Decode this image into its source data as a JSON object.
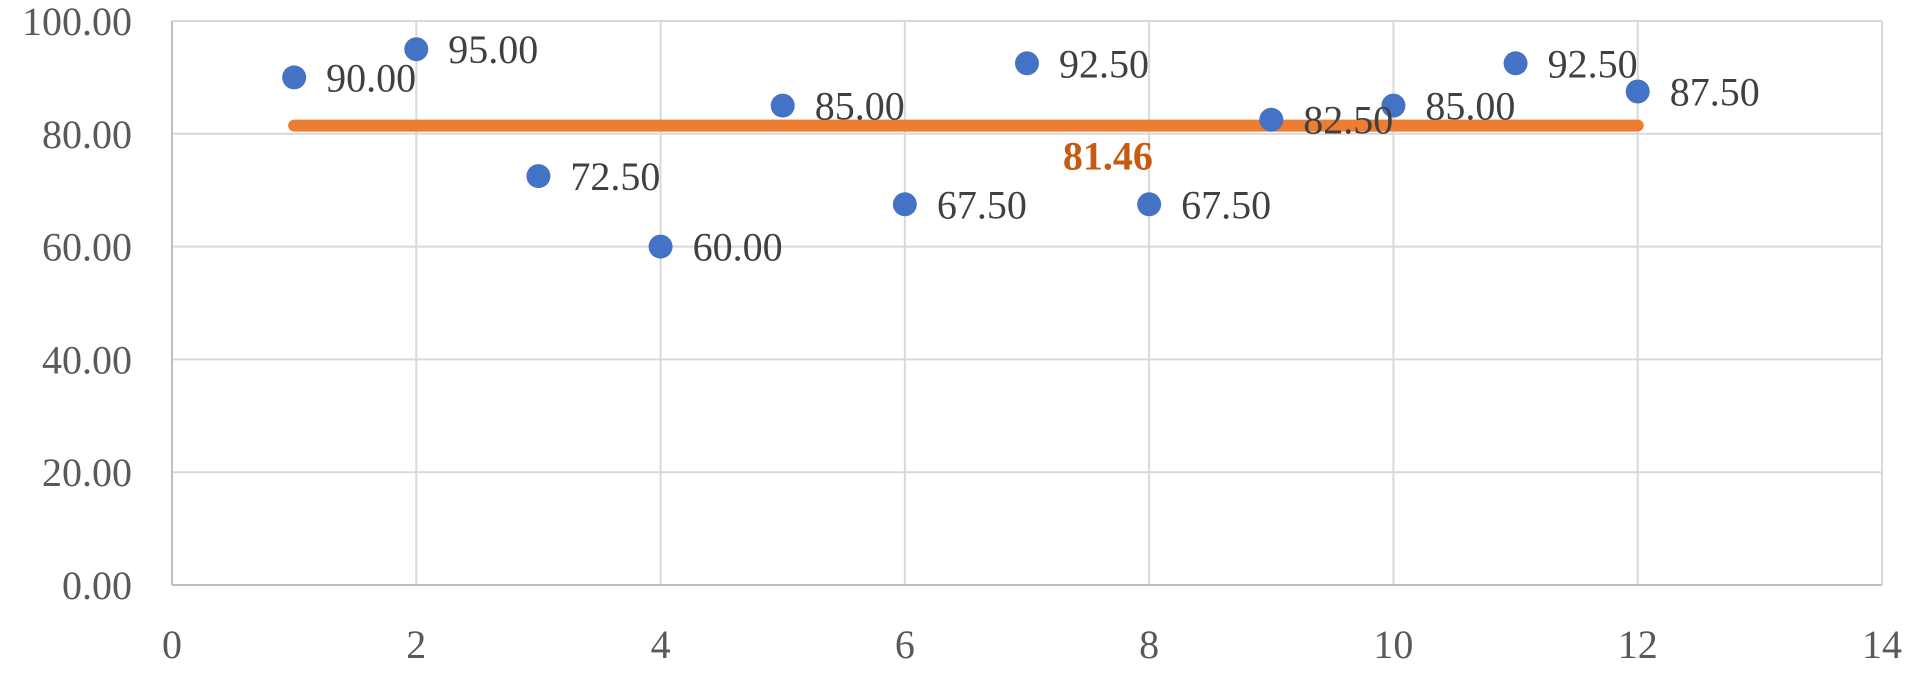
{
  "chart_data": {
    "type": "scatter",
    "title": "",
    "xlabel": "",
    "ylabel": "",
    "xlim": [
      0,
      14
    ],
    "ylim": [
      0,
      100
    ],
    "x_ticks": [
      0,
      2,
      4,
      6,
      8,
      10,
      12,
      14
    ],
    "y_ticks": [
      0,
      20,
      40,
      60,
      80,
      100
    ],
    "x_tick_labels": [
      "0",
      "2",
      "4",
      "6",
      "8",
      "10",
      "12",
      "14"
    ],
    "y_tick_labels": [
      "0.00",
      "20.00",
      "40.00",
      "60.00",
      "80.00",
      "100.00"
    ],
    "grid": true,
    "legend": "none",
    "series": [
      {
        "type": "scatter",
        "color": "#4472C4",
        "points": [
          {
            "x": 1,
            "y": 90.0,
            "label": "90.00"
          },
          {
            "x": 2,
            "y": 95.0,
            "label": "95.00"
          },
          {
            "x": 3,
            "y": 72.5,
            "label": "72.50"
          },
          {
            "x": 4,
            "y": 60.0,
            "label": "60.00"
          },
          {
            "x": 5,
            "y": 85.0,
            "label": "85.00"
          },
          {
            "x": 6,
            "y": 67.5,
            "label": "67.50"
          },
          {
            "x": 7,
            "y": 92.5,
            "label": "92.50"
          },
          {
            "x": 8,
            "y": 67.5,
            "label": "67.50"
          },
          {
            "x": 9,
            "y": 82.5,
            "label": "82.50"
          },
          {
            "x": 10,
            "y": 85.0,
            "label": "85.00"
          },
          {
            "x": 11,
            "y": 92.5,
            "label": "92.50"
          },
          {
            "x": 12,
            "y": 87.5,
            "label": "87.50"
          }
        ]
      },
      {
        "type": "line",
        "color": "#ED7D31",
        "x": [
          1,
          12
        ],
        "y": [
          81.46,
          81.46
        ],
        "label": "81.46",
        "label_color": "#C55A11"
      }
    ]
  }
}
